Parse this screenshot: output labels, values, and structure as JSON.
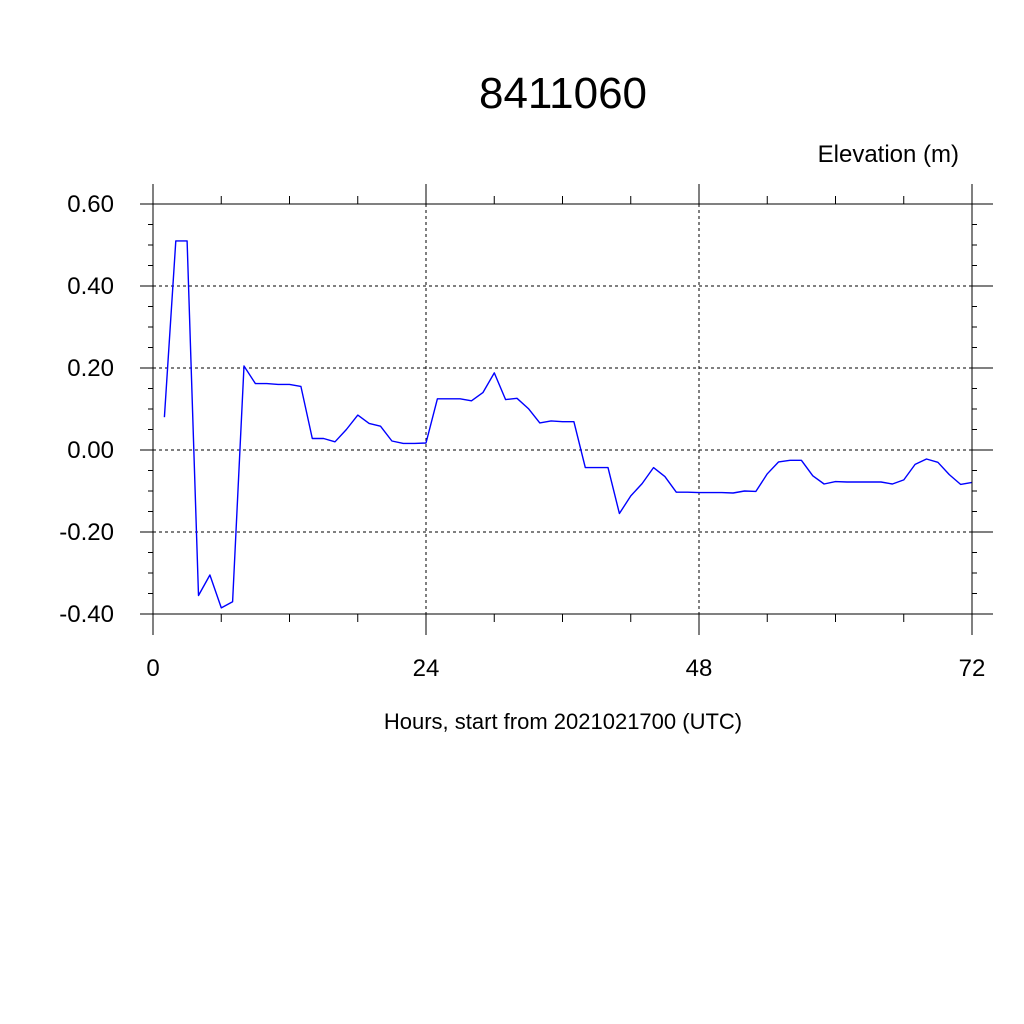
{
  "chart_data": {
    "type": "line",
    "title": "8411060",
    "ylabel": "Elevation (m)",
    "xlabel": "Hours, start from 2021021700 (UTC)",
    "xlim": [
      0,
      72
    ],
    "ylim": [
      -0.4,
      0.6
    ],
    "x_ticks": [
      0,
      24,
      48,
      72
    ],
    "x_tick_labels": [
      "0",
      "24",
      "48",
      "72"
    ],
    "y_ticks": [
      -0.4,
      -0.2,
      0.0,
      0.2,
      0.4,
      0.6
    ],
    "y_tick_labels": [
      "-0.40",
      "-0.20",
      "0.00",
      "0.20",
      "0.40",
      "0.60"
    ],
    "grid": true,
    "grid_style": "dashed",
    "series": [
      {
        "color": "#0000ff",
        "x": [
          1,
          2,
          3,
          4,
          5,
          6,
          7,
          8,
          9,
          10,
          11,
          12,
          13,
          14,
          15,
          16,
          17,
          18,
          19,
          20,
          21,
          22,
          23,
          24,
          25,
          26,
          27,
          28,
          29,
          30,
          31,
          32,
          33,
          34,
          35,
          36,
          37,
          38,
          39,
          40,
          41,
          42,
          43,
          44,
          45,
          46,
          47,
          48,
          49,
          50,
          51,
          52,
          53,
          54,
          55,
          56,
          57,
          58,
          59,
          60,
          61,
          62,
          63,
          64,
          65,
          66,
          67,
          68,
          69,
          70,
          71,
          72
        ],
        "y": [
          0.08,
          0.51,
          0.51,
          -0.355,
          -0.305,
          -0.385,
          -0.37,
          0.205,
          0.162,
          0.162,
          0.16,
          0.16,
          0.155,
          0.028,
          0.028,
          0.02,
          0.05,
          0.085,
          0.065,
          0.058,
          0.022,
          0.016,
          0.016,
          0.017,
          0.125,
          0.125,
          0.125,
          0.12,
          0.14,
          0.188,
          0.123,
          0.126,
          0.101,
          0.066,
          0.071,
          0.069,
          0.069,
          -0.043,
          -0.043,
          -0.043,
          -0.155,
          -0.112,
          -0.082,
          -0.043,
          -0.065,
          -0.103,
          -0.103,
          -0.104,
          -0.104,
          -0.104,
          -0.105,
          -0.1,
          -0.101,
          -0.058,
          -0.029,
          -0.025,
          -0.025,
          -0.063,
          -0.083,
          -0.077,
          -0.078,
          -0.078,
          -0.078,
          -0.078,
          -0.083,
          -0.073,
          -0.035,
          -0.022,
          -0.03,
          -0.06,
          -0.084,
          -0.079
        ]
      }
    ]
  }
}
